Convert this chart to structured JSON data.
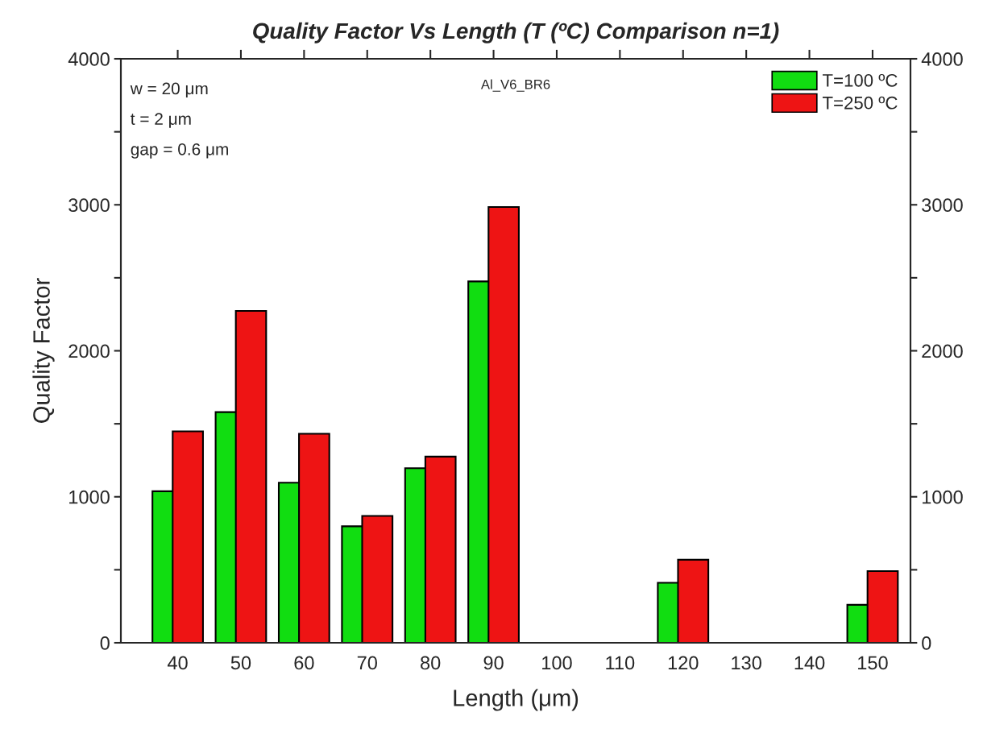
{
  "chart_data": {
    "type": "bar",
    "title": "Quality Factor Vs Length (T (ºC) Comparison n=1)",
    "xlabel": "Length (μm)",
    "ylabel": "Quality Factor",
    "categories": [
      "40",
      "50",
      "60",
      "70",
      "80",
      "90",
      "100",
      "110",
      "120",
      "130",
      "140",
      "150"
    ],
    "series": [
      {
        "name": "T=100 ºC",
        "color": "#11dd11",
        "values": [
          1038,
          1580,
          1097,
          798,
          1196,
          2475,
          null,
          null,
          411,
          null,
          null,
          260
        ]
      },
      {
        "name": "T=250 ºC",
        "color": "#ee1414",
        "values": [
          1448,
          2273,
          1432,
          869,
          1275,
          2985,
          null,
          null,
          569,
          null,
          null,
          491
        ]
      }
    ],
    "ylim": [
      0,
      4000
    ],
    "yticks": [
      0,
      {
        "value": 500,
        "label": null
      },
      1000,
      {
        "value": 1500,
        "label": null
      },
      2000,
      {
        "value": 2500,
        "label": null
      },
      3000,
      {
        "value": 3500,
        "label": null
      },
      4000
    ],
    "y2lim": [
      0,
      4000
    ],
    "y2ticks": [
      0,
      {
        "value": 500,
        "label": null
      },
      1000,
      {
        "value": 1500,
        "label": null
      },
      2000,
      {
        "value": 2500,
        "label": null
      },
      3000,
      {
        "value": 3500,
        "label": null
      },
      4000
    ],
    "annotations": [
      "w = 20 μm",
      "t = 2 μm",
      "gap = 0.6 μm",
      "Al_V6_BR6"
    ],
    "legend": "top right",
    "grid": false
  }
}
